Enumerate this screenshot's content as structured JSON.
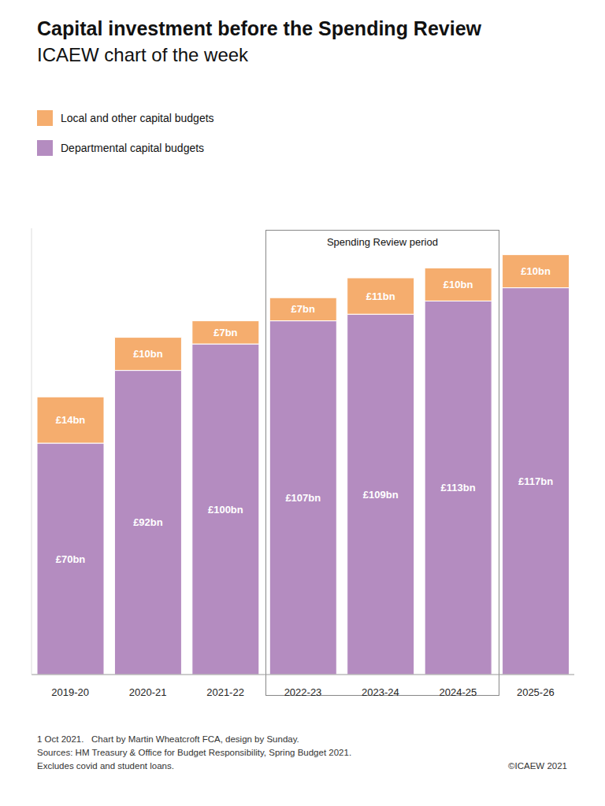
{
  "chart_data": {
    "type": "bar",
    "title": "Capital investment before the Spending Review",
    "subtitle": "ICAEW chart of the week",
    "categories": [
      "2019-20",
      "2020-21",
      "2021-22",
      "2022-23",
      "2023-24",
      "2024-25",
      "2025-26"
    ],
    "series": [
      {
        "name": "Departmental capital budgets",
        "color": "#b48cc0",
        "values": [
          70,
          92,
          100,
          107,
          109,
          113,
          117
        ],
        "value_labels": [
          "£70bn",
          "£92bn",
          "£100bn",
          "£107bn",
          "£109bn",
          "£113bn",
          "£117bn"
        ]
      },
      {
        "name": "Local and other capital budgets",
        "color": "#f5ad6e",
        "values": [
          14,
          10,
          7,
          7,
          11,
          10,
          10
        ],
        "value_labels": [
          "£14bn",
          "£10bn",
          "£7bn",
          "£7bn",
          "£11bn",
          "£10bn",
          "£10bn"
        ]
      }
    ],
    "stacked": true,
    "data_labels": true,
    "tick_labels": "x",
    "ylim": [
      0,
      135
    ],
    "annotations": [
      {
        "text": "Spending Review period",
        "x_start": "2022-23",
        "x_end": "2024-25"
      }
    ],
    "notes": [
      "1 Oct 2021.   Chart by Martin Wheatcroft FCA, design by Sunday.",
      "Sources: HM Treasury & Office for Budget Responsibility, Spring Budget 2021.",
      "Excludes covid and student loans."
    ],
    "copyright": "©ICAEW 2021"
  }
}
